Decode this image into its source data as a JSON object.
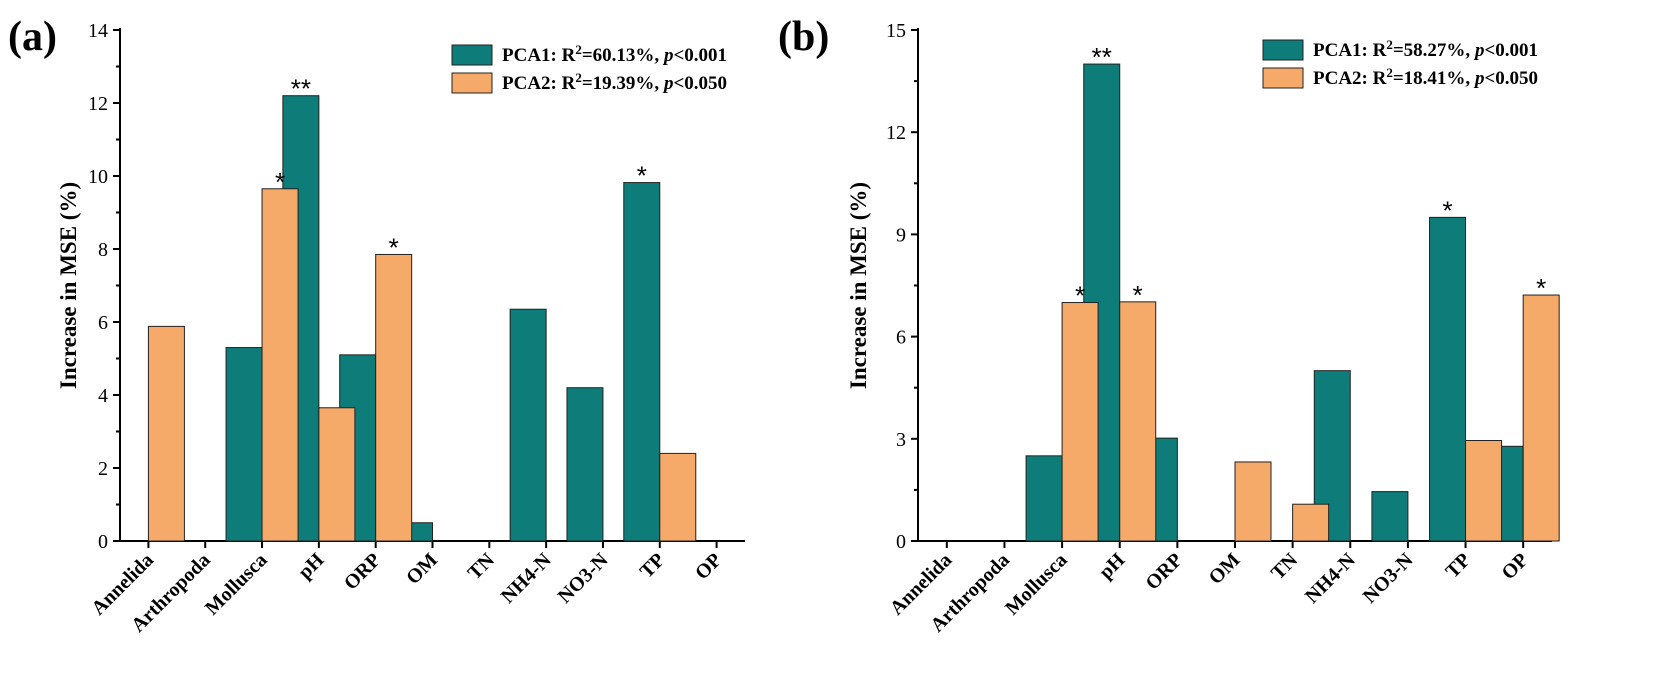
{
  "colors": {
    "pca1": "#0e7c78",
    "pca2": "#f5aa6a"
  },
  "chart_data": [
    {
      "type": "bar",
      "panel_label": "(a)",
      "ylabel": "Increase in MSE (%)",
      "ylim": [
        0,
        14
      ],
      "yticks": [
        "0",
        "2",
        "4",
        "6",
        "8",
        "10",
        "12",
        "14"
      ],
      "categories": [
        "Annelida",
        "Arthropoda",
        "Mollusca",
        "pH",
        "ORP",
        "OM",
        "TN",
        "NH4-N",
        "NO3-N",
        "TP",
        "OP"
      ],
      "series": [
        {
          "name": "PCA1",
          "legend_prefix": "PCA1: R",
          "legend_sup": "2",
          "legend_mid": "=60.13%, ",
          "legend_p": "p",
          "legend_end": "<0.001",
          "values": [
            null,
            null,
            5.3,
            12.2,
            5.1,
            0.5,
            null,
            6.35,
            4.2,
            9.82,
            null
          ],
          "significance": [
            "",
            "",
            "",
            "**",
            "",
            "",
            "",
            "",
            "",
            "*",
            ""
          ]
        },
        {
          "name": "PCA2",
          "legend_prefix": "PCA2: R",
          "legend_sup": "2",
          "legend_mid": "=19.39%, ",
          "legend_p": "p",
          "legend_end": "<0.050",
          "values": [
            5.88,
            null,
            9.65,
            3.65,
            7.85,
            null,
            null,
            null,
            null,
            2.4,
            null
          ],
          "significance": [
            "",
            "",
            "*",
            "",
            "*",
            "",
            "",
            "",
            "",
            "",
            ""
          ]
        }
      ]
    },
    {
      "type": "bar",
      "panel_label": "(b)",
      "ylabel": "Increase in MSE (%)",
      "ylim": [
        0,
        15
      ],
      "yticks": [
        "0",
        "3",
        "6",
        "9",
        "12",
        "15"
      ],
      "categories": [
        "Annelida",
        "Arthropoda",
        "Mollusca",
        "pH",
        "ORP",
        "OM",
        "TN",
        "NH4-N",
        "NO3-N",
        "TP",
        "OP"
      ],
      "series": [
        {
          "name": "PCA1",
          "legend_prefix": "PCA1: R",
          "legend_sup": "2",
          "legend_mid": "=58.27%, ",
          "legend_p": "p",
          "legend_end": "<0.001",
          "values": [
            null,
            null,
            2.5,
            14.0,
            3.02,
            null,
            null,
            5.0,
            1.45,
            9.5,
            2.78
          ],
          "significance": [
            "",
            "",
            "",
            "**",
            "",
            "",
            "",
            "",
            "",
            "*",
            ""
          ]
        },
        {
          "name": "PCA2",
          "legend_prefix": "PCA2: R",
          "legend_sup": "2",
          "legend_mid": "=18.41%, ",
          "legend_p": "p",
          "legend_end": "<0.050",
          "values": [
            null,
            null,
            7.0,
            7.02,
            null,
            2.32,
            1.08,
            null,
            null,
            2.95,
            7.22
          ],
          "significance": [
            "",
            "",
            "*",
            "*",
            "",
            "",
            "",
            "",
            "",
            "",
            "*"
          ]
        }
      ]
    }
  ]
}
